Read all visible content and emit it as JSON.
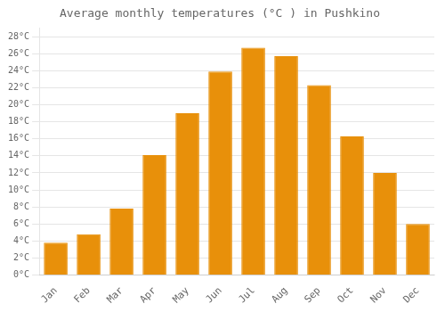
{
  "chart_data": {
    "type": "bar",
    "title": "Average monthly temperatures (°C ) in Pushkino",
    "categories": [
      "Jan",
      "Feb",
      "Mar",
      "Apr",
      "May",
      "Jun",
      "Jul",
      "Aug",
      "Sep",
      "Oct",
      "Nov",
      "Dec"
    ],
    "values": [
      3.8,
      4.8,
      7.8,
      14.1,
      19.0,
      23.9,
      26.7,
      25.7,
      22.3,
      16.3,
      12.0,
      6.0
    ],
    "color": "#E8900A",
    "ylim": [
      0,
      29
    ],
    "yticks": [
      {
        "value": 0,
        "label": "0°C"
      },
      {
        "value": 2,
        "label": "2°C"
      },
      {
        "value": 4,
        "label": "4°C"
      },
      {
        "value": 6,
        "label": "6°C"
      },
      {
        "value": 8,
        "label": "8°C"
      },
      {
        "value": 10,
        "label": "10°C"
      },
      {
        "value": 12,
        "label": "12°C"
      },
      {
        "value": 14,
        "label": "14°C"
      },
      {
        "value": 16,
        "label": "16°C"
      },
      {
        "value": 18,
        "label": "18°C"
      },
      {
        "value": 20,
        "label": "20°C"
      },
      {
        "value": 22,
        "label": "22°C"
      },
      {
        "value": 24,
        "label": "24°C"
      },
      {
        "value": 26,
        "label": "26°C"
      },
      {
        "value": 28,
        "label": "28°C"
      }
    ],
    "grid": true
  }
}
